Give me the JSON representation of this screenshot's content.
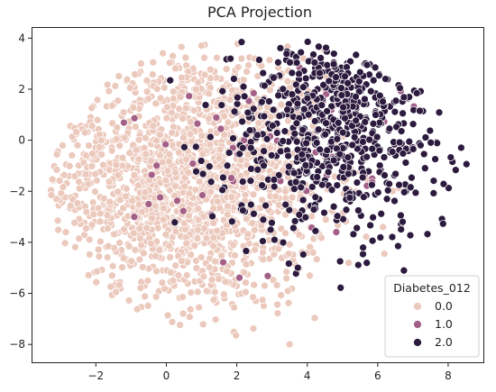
{
  "chart_data": {
    "type": "scatter",
    "title": "PCA Projection",
    "xlabel": "",
    "ylabel": "",
    "xlim": [
      -3.8,
      9.0
    ],
    "ylim": [
      -8.7,
      4.4
    ],
    "xticks": [
      -2,
      0,
      2,
      4,
      6,
      8
    ],
    "yticks": [
      -8,
      -6,
      -4,
      -2,
      0,
      2,
      4
    ],
    "grid": false,
    "legend": {
      "title": "Diabetes_012",
      "placement": "bottom-right",
      "entries": [
        "0.0",
        "1.0",
        "2.0"
      ]
    },
    "series": [
      {
        "name": "0.0",
        "color": "#ecc9bd",
        "approx_points": 1700,
        "x_range": [
          -3.3,
          7.5
        ],
        "y_range": [
          -8.0,
          4.0
        ],
        "center": [
          0.6,
          -1.5
        ],
        "spread": [
          2.0,
          2.6
        ]
      },
      {
        "name": "1.0",
        "color": "#a45f87",
        "approx_points": 60,
        "x_range": [
          -1.5,
          8.5
        ],
        "y_range": [
          -6.5,
          3.8
        ],
        "center": [
          3.5,
          -0.5
        ],
        "spread": [
          2.3,
          2.4
        ]
      },
      {
        "name": "2.0",
        "color": "#2c1b3e",
        "approx_points": 650,
        "x_range": [
          0.0,
          8.8
        ],
        "y_range": [
          -6.3,
          3.9
        ],
        "center": [
          4.8,
          0.6
        ],
        "spread": [
          1.7,
          2.2
        ]
      }
    ],
    "outliers": [
      {
        "series": "0.0",
        "x": 3.5,
        "y": -8.0
      }
    ]
  }
}
